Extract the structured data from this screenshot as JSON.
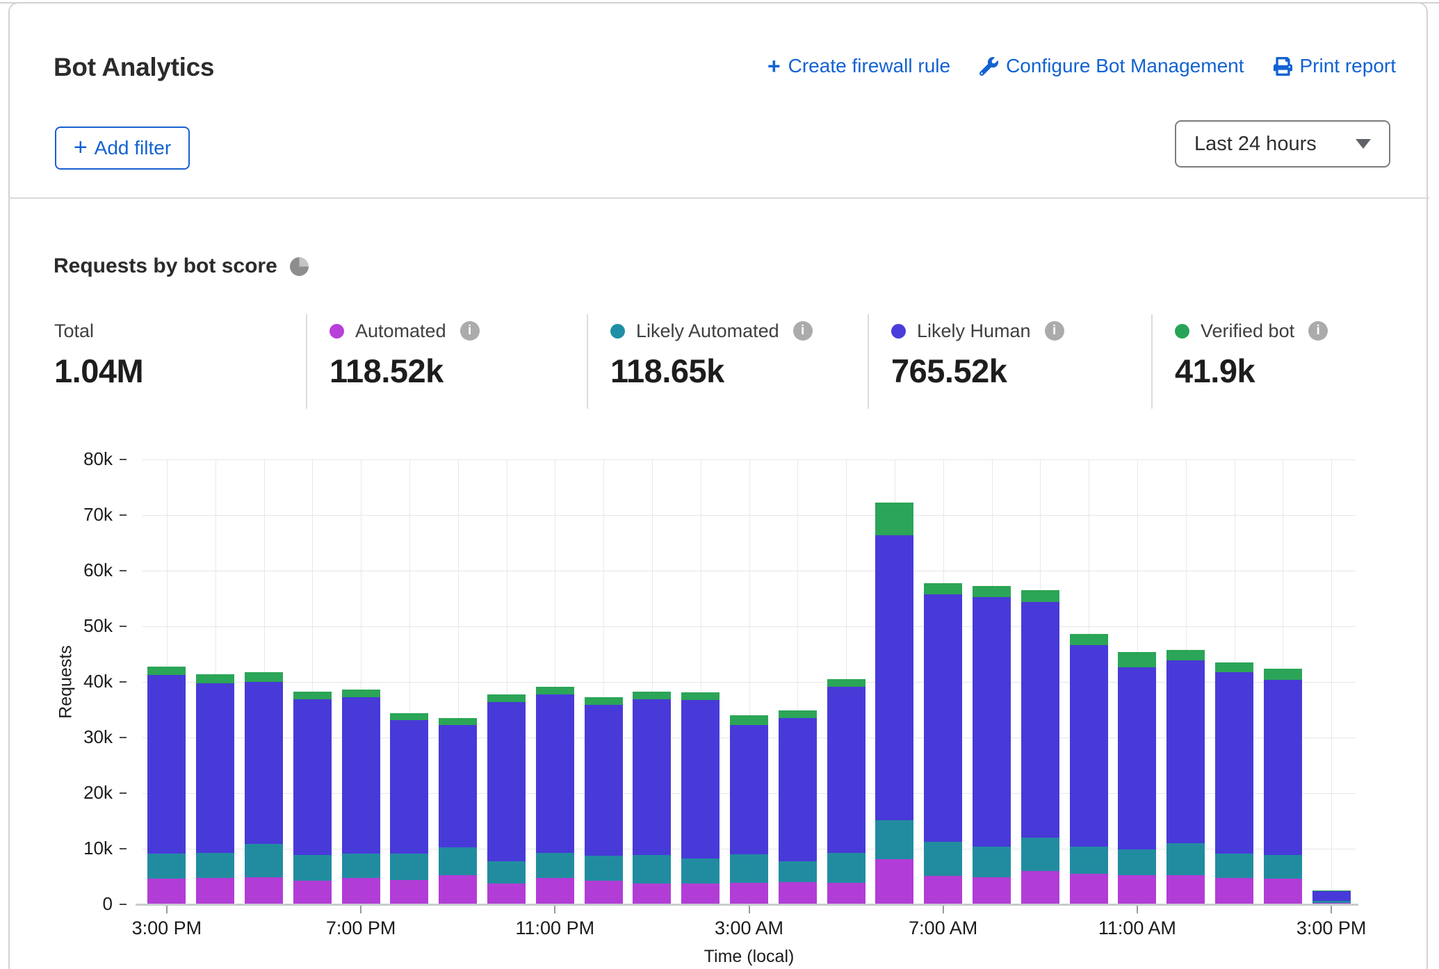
{
  "header": {
    "title": "Bot Analytics",
    "actions": [
      {
        "label": "Create firewall rule",
        "icon": "plus-icon"
      },
      {
        "label": "Configure Bot Management",
        "icon": "wrench-icon"
      },
      {
        "label": "Print report",
        "icon": "printer-icon"
      }
    ],
    "add_filter_label": "Add filter",
    "time_range_value": "Last 24 hours"
  },
  "section": {
    "title": "Requests by bot score"
  },
  "stats": {
    "total": {
      "label": "Total",
      "value": "1.04M"
    },
    "series": [
      {
        "label": "Automated",
        "value": "118.52k",
        "color": "#b83fd9"
      },
      {
        "label": "Likely Automated",
        "value": "118.65k",
        "color": "#1f8ea6"
      },
      {
        "label": "Likely Human",
        "value": "765.52k",
        "color": "#4a3ddb"
      },
      {
        "label": "Verified bot",
        "value": "41.9k",
        "color": "#28a457"
      }
    ]
  },
  "chart_data": {
    "type": "bar",
    "stacked": true,
    "title": "Requests by bot score",
    "xlabel": "Time (local)",
    "ylabel": "Requests",
    "ylim": [
      0,
      80000
    ],
    "values_unit": "thousands of requests per hour",
    "grid": true,
    "y_tick_labels": [
      "0",
      "10k",
      "20k",
      "30k",
      "40k",
      "50k",
      "60k",
      "70k",
      "80k"
    ],
    "x_tick_positions": [
      0,
      4,
      8,
      12,
      16,
      20,
      24
    ],
    "x_tick_labels": [
      "3:00 PM",
      "7:00 PM",
      "11:00 PM",
      "3:00 AM",
      "7:00 AM",
      "11:00 AM",
      "3:00 PM"
    ],
    "categories_hours": 25,
    "series": [
      {
        "name": "Automated",
        "color": "#b23dd6",
        "values": [
          4.6,
          4.7,
          4.9,
          4.3,
          4.7,
          4.4,
          5.3,
          3.7,
          4.8,
          4.2,
          3.8,
          3.7,
          3.9,
          4.0,
          3.9,
          8.1,
          5.1,
          4.9,
          6.0,
          5.5,
          5.2,
          5.2,
          4.7,
          4.6,
          0.25
        ]
      },
      {
        "name": "Likely Automated",
        "color": "#218ca0",
        "values": [
          4.5,
          4.5,
          6.0,
          4.6,
          4.4,
          4.7,
          5.0,
          4.0,
          4.5,
          4.5,
          5.1,
          4.6,
          5.1,
          3.7,
          5.4,
          7.0,
          6.2,
          5.5,
          6.0,
          4.9,
          4.7,
          5.8,
          4.4,
          4.3,
          0.35
        ]
      },
      {
        "name": "Likely Human",
        "color": "#483ad8",
        "values": [
          32.2,
          30.6,
          29.1,
          28.0,
          28.1,
          24.0,
          21.9,
          28.7,
          28.5,
          27.2,
          28.0,
          28.5,
          23.2,
          25.8,
          29.8,
          51.3,
          44.5,
          44.9,
          42.4,
          36.2,
          32.7,
          32.9,
          32.6,
          31.5,
          1.9
        ]
      },
      {
        "name": "Verified bot",
        "color": "#2ba557",
        "values": [
          1.5,
          1.6,
          1.8,
          1.4,
          1.4,
          1.3,
          1.3,
          1.3,
          1.3,
          1.3,
          1.3,
          1.3,
          1.8,
          1.4,
          1.4,
          5.9,
          2.0,
          2.0,
          2.1,
          2.0,
          2.8,
          1.8,
          1.8,
          2.0,
          0.05
        ]
      }
    ],
    "legend_position": "top",
    "bar_totals_k": [
      42.8,
      41.4,
      41.8,
      38.3,
      38.6,
      34.4,
      33.5,
      37.7,
      39.1,
      37.2,
      38.2,
      38.1,
      34.0,
      34.9,
      40.5,
      72.3,
      57.8,
      57.3,
      56.5,
      48.6,
      45.4,
      45.7,
      43.5,
      42.4,
      2.55
    ]
  }
}
